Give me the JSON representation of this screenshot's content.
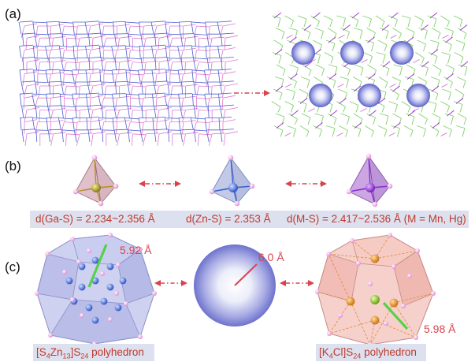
{
  "panels": {
    "a": "(a)",
    "b": "(b)",
    "c": "(c)"
  },
  "distances": {
    "ga_s": "d(Ga-S) = 2.234~2.356 Å",
    "zn_s": "d(Zn-S) = 2.353 Å",
    "m_s": "d(M-S) = 2.417~2.536 Å (M = Mn, Hg)"
  },
  "measurements": {
    "zn_poly": "5.92 Å",
    "sphere": "6.0 Å",
    "k_poly": "5.98 Å"
  },
  "polyhedra": {
    "left": {
      "pre": "[S",
      "s1": "4",
      "mid": "Zn",
      "s2": "13",
      "post": "]S",
      "s3": "24",
      "tail": " polyhedron"
    },
    "right": {
      "pre": "[K",
      "s1": "4",
      "mid": "Cl]S",
      "s3": "24",
      "tail": " polyhedron"
    }
  },
  "colors": {
    "framework_blue": "#4b5fd0",
    "framework_pink": "#e07ad0",
    "framework_green": "#7fd06a",
    "sphere": "#7d82d8",
    "arrow": "#d9434f",
    "caption_bg": "#dde1ef"
  }
}
